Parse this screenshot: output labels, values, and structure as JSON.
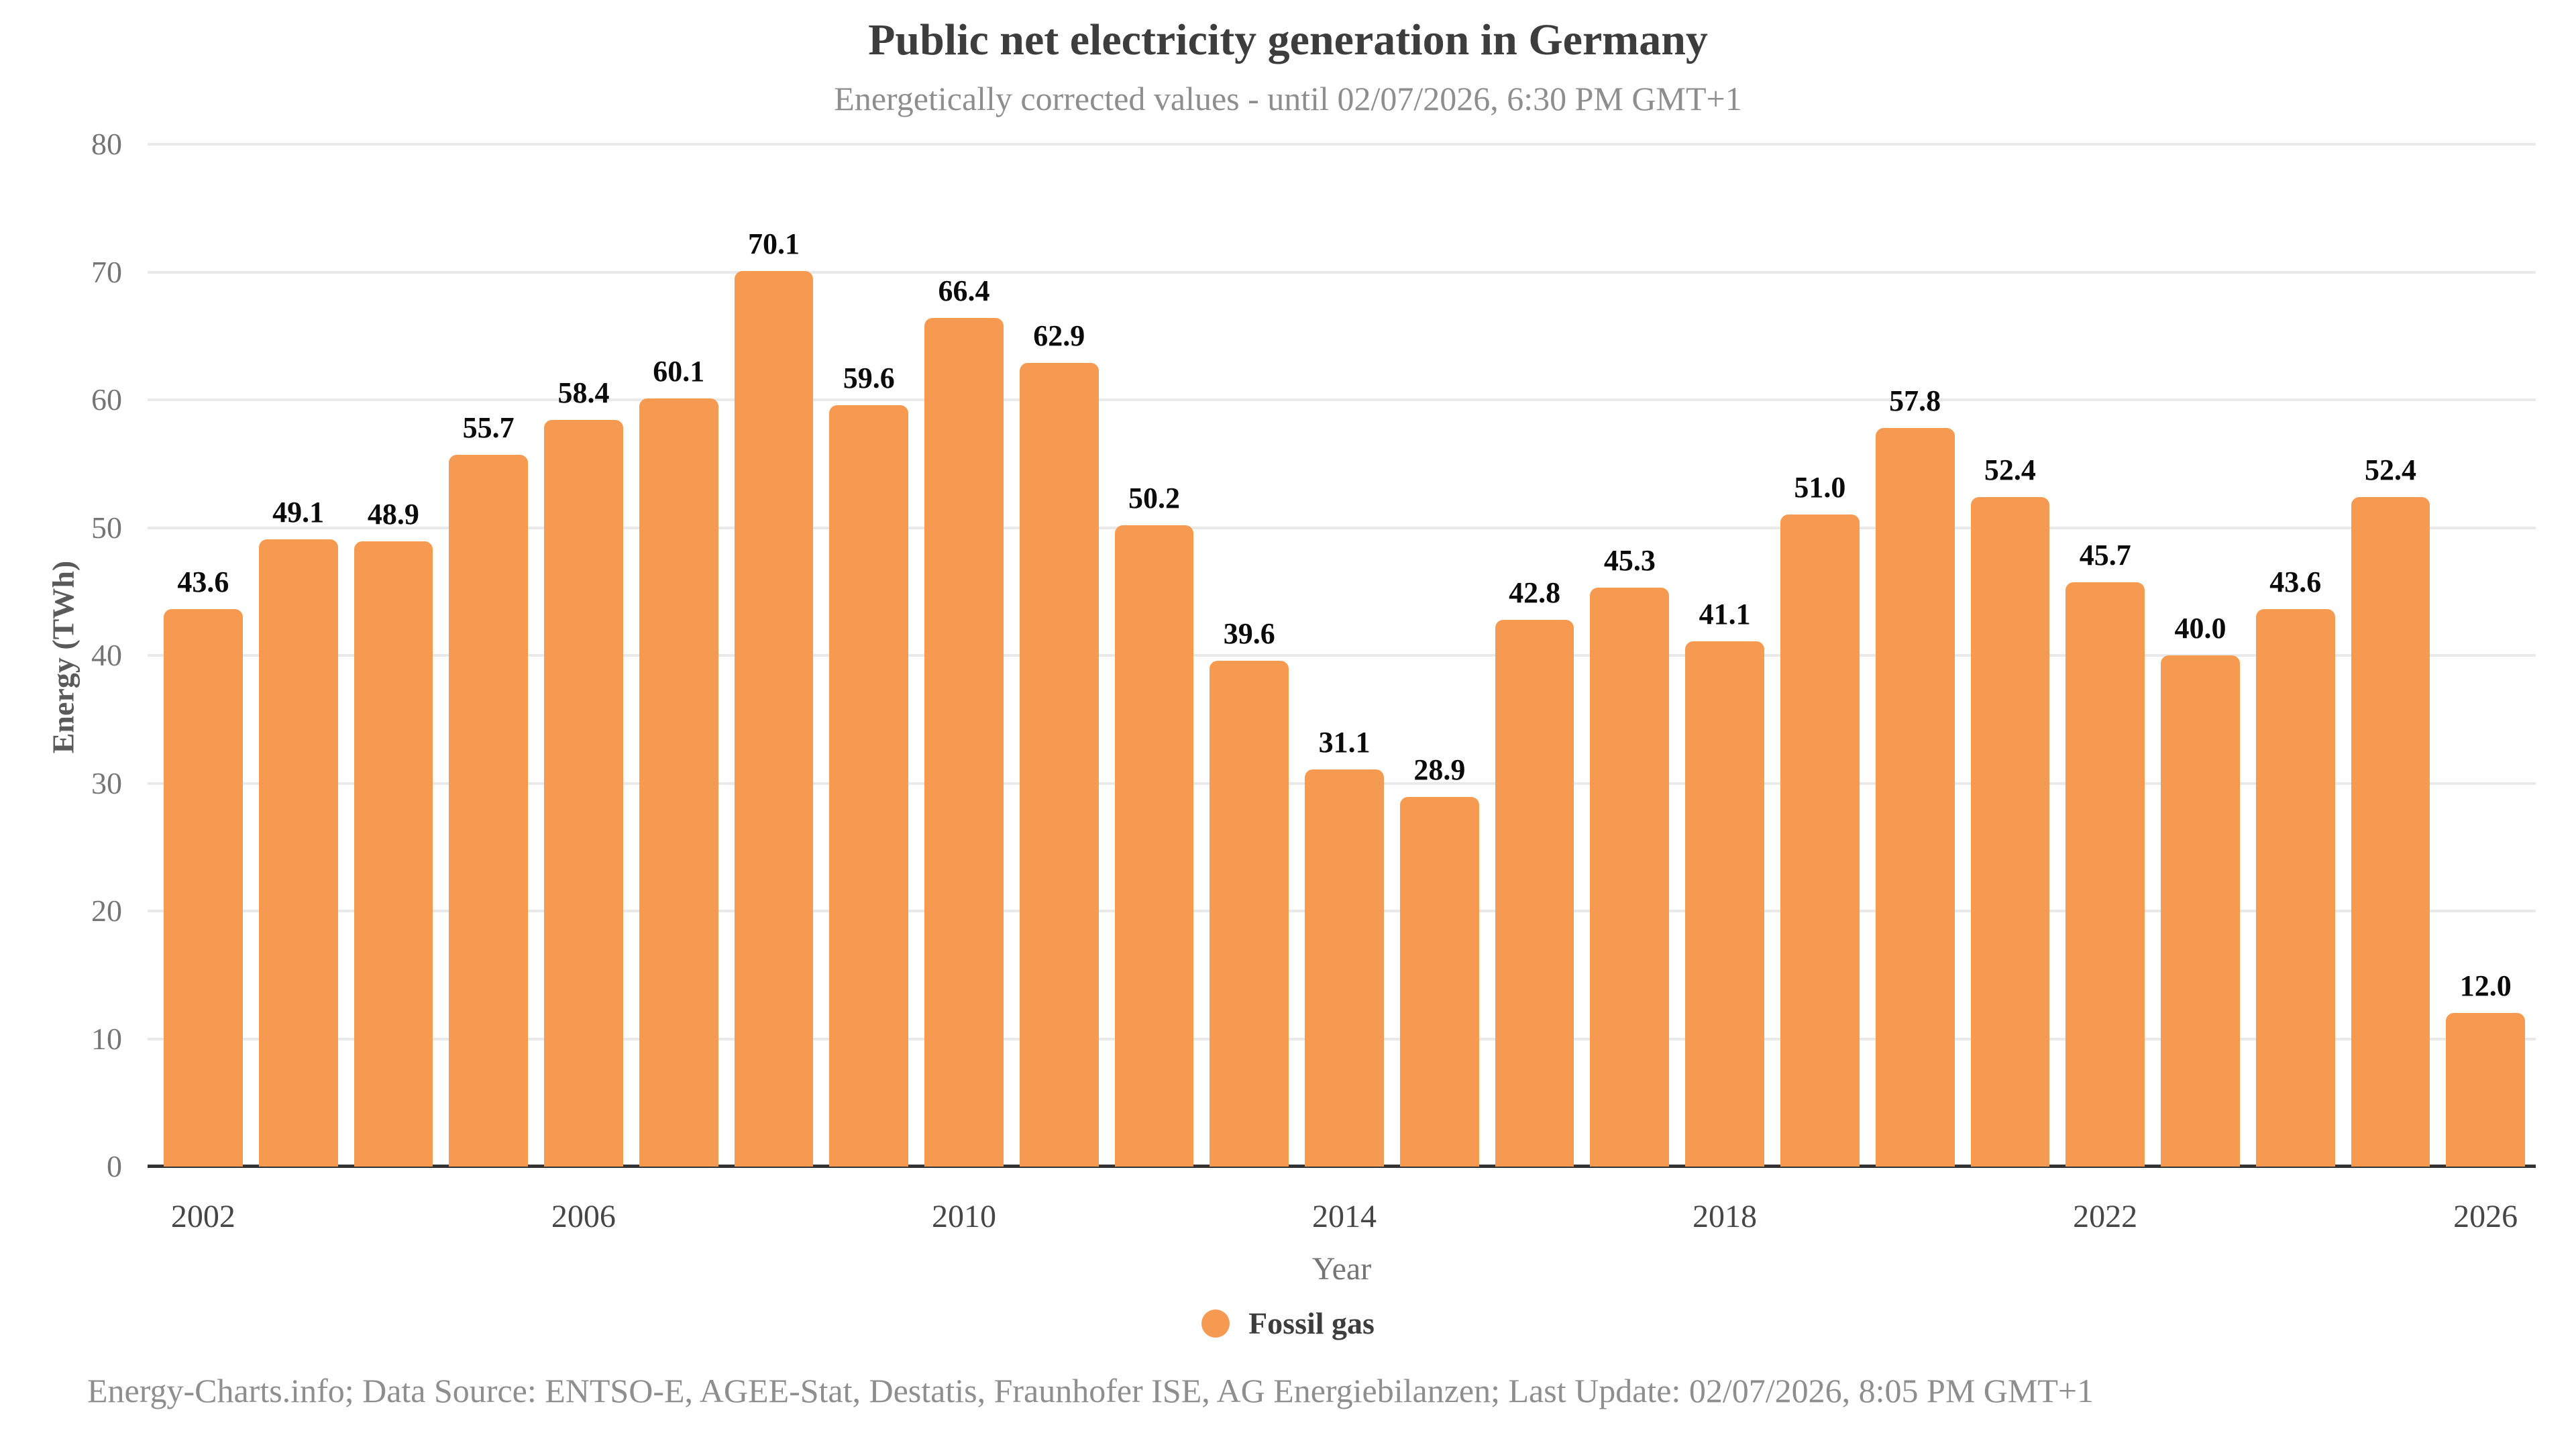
{
  "header": {
    "title": "Public net electricity generation in Germany",
    "subtitle": "Energetically corrected values - until 02/07/2026, 6:30 PM GMT+1"
  },
  "chart_data": {
    "type": "bar",
    "title": "Public net electricity generation in Germany",
    "subtitle": "Energetically corrected values - until 02/07/2026, 6:30 PM GMT+1",
    "xlabel": "Year",
    "ylabel": "Energy (TWh)",
    "ylim": [
      0,
      80
    ],
    "y_ticks": [
      0,
      10,
      20,
      30,
      40,
      50,
      60,
      70,
      80
    ],
    "x_tick_years": [
      2002,
      2006,
      2010,
      2014,
      2018,
      2022,
      2026
    ],
    "categories": [
      2002,
      2003,
      2004,
      2005,
      2006,
      2007,
      2008,
      2009,
      2010,
      2011,
      2012,
      2013,
      2014,
      2015,
      2016,
      2017,
      2018,
      2019,
      2020,
      2021,
      2022,
      2023,
      2024,
      2025,
      2026
    ],
    "series": [
      {
        "name": "Fossil gas",
        "color": "#f79a51",
        "values": [
          43.6,
          49.1,
          48.9,
          55.7,
          58.4,
          60.1,
          70.1,
          59.6,
          66.4,
          62.9,
          50.2,
          39.6,
          31.1,
          28.9,
          42.8,
          45.3,
          41.1,
          51.0,
          57.8,
          52.4,
          45.7,
          40.0,
          43.6,
          52.4,
          12.0
        ]
      }
    ],
    "value_label_decimals": 1,
    "grid": true,
    "legend_position": "bottom"
  },
  "legend": {
    "items": [
      {
        "label": "Fossil gas",
        "color": "#f79a51",
        "marker": "circle-icon"
      }
    ]
  },
  "footer": {
    "text": "Energy-Charts.info; Data Source: ENTSO-E, AGEE-Stat, Destatis, Fraunhofer ISE, AG Energiebilanzen; Last Update: 02/07/2026, 8:05 PM GMT+1"
  }
}
